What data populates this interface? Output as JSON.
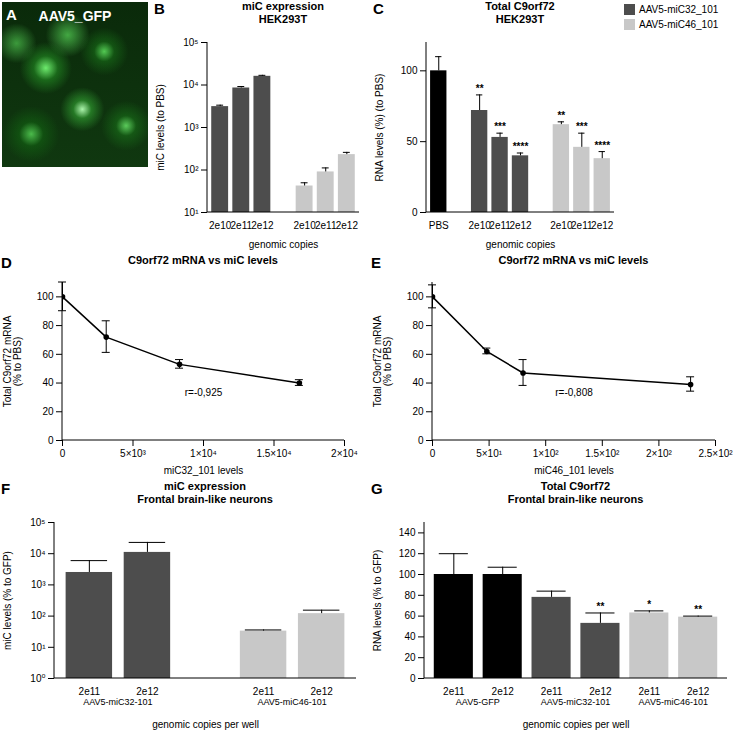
{
  "chart_data": [
    {
      "panel": "A",
      "type": "image",
      "title": "AAV5_GFP"
    },
    {
      "panel": "B",
      "type": "bar",
      "title": "miC expression\nHEK293T",
      "xlabel": "genomic copies",
      "ylabel": "miC levels (to PBS)",
      "log": "y",
      "categories": [
        "2e10",
        "2e11",
        "2e12",
        null,
        "2e10",
        "2e11",
        "2e12"
      ],
      "series": [
        {
          "color": "#4d4d4d",
          "values": [
            3100,
            8500,
            16000,
            null,
            null,
            null,
            null
          ],
          "errors": [
            250,
            700,
            900,
            null,
            null,
            null,
            null
          ]
        },
        {
          "color": "#c8c8c8",
          "values": [
            null,
            null,
            null,
            null,
            42,
            90,
            230
          ],
          "errors": [
            null,
            null,
            null,
            null,
            8,
            22,
            30
          ]
        }
      ],
      "ylim": [
        10,
        100000
      ],
      "yticks": [
        {
          "value": 10,
          "label": "10¹"
        },
        {
          "value": 100,
          "label": "10²"
        },
        {
          "value": 1000,
          "label": "10³"
        },
        {
          "value": 10000,
          "label": "10⁴"
        },
        {
          "value": 100000,
          "label": "10⁵"
        }
      ]
    },
    {
      "panel": "C",
      "type": "bar",
      "title": "Total C9orf72\nHEK293T",
      "xlabel": "genomic copies",
      "ylabel": "RNA levels (%) (to PBS)",
      "legend": "top-right",
      "categories": [
        "PBS",
        null,
        "2e10",
        "2e11",
        "2e12",
        null,
        "2e10",
        "2e11",
        "2e12"
      ],
      "series": [
        {
          "color": "#000000",
          "values": [
            100,
            null,
            null,
            null,
            null,
            null,
            null,
            null,
            null
          ],
          "errors": [
            10,
            null,
            null,
            null,
            null,
            null,
            null,
            null,
            null
          ]
        },
        {
          "name": "AAV5-miC32_101",
          "color": "#4d4d4d",
          "values": [
            null,
            null,
            72,
            53,
            40,
            null,
            null,
            null,
            null
          ],
          "errors": [
            null,
            null,
            11,
            3,
            2,
            null,
            null,
            null,
            null
          ],
          "significance": [
            null,
            null,
            "**",
            "***",
            "****",
            null,
            null,
            null,
            null
          ]
        },
        {
          "name": "AAV5-miC46_101",
          "color": "#c8c8c8",
          "values": [
            null,
            null,
            null,
            null,
            null,
            null,
            62,
            46,
            38
          ],
          "errors": [
            null,
            null,
            null,
            null,
            null,
            null,
            2,
            10,
            5
          ],
          "significance": [
            null,
            null,
            null,
            null,
            null,
            null,
            "**",
            "***",
            "****"
          ]
        }
      ],
      "ylim": [
        0,
        120
      ],
      "yticks": [
        0,
        50,
        100
      ]
    },
    {
      "panel": "D",
      "type": "line",
      "title": "C9orf72 mRNA vs miC levels",
      "xlabel": "miC32_101 levels",
      "ylabel": "Total C9orf72 mRNA\n(% to PBS)",
      "x": [
        0,
        3100,
        8300,
        16800
      ],
      "series": [
        {
          "color": "#000000",
          "marker": "circle",
          "values": [
            100,
            72,
            53,
            40
          ],
          "errors": [
            10,
            11,
            3,
            2
          ]
        }
      ],
      "annotations": [
        "r=-0,925"
      ],
      "xlim": [
        0,
        20000
      ],
      "xticks": [
        0,
        {
          "value": 5000,
          "label": "5×10³"
        },
        {
          "value": 10000,
          "label": "1×10⁴"
        },
        {
          "value": 15000,
          "label": "1.5×10⁴"
        },
        {
          "value": 20000,
          "label": "2×10⁴"
        }
      ],
      "ylim": [
        0,
        110
      ],
      "yticks": [
        0,
        20,
        40,
        60,
        80,
        100
      ]
    },
    {
      "panel": "E",
      "type": "line",
      "title": "C9orf72 mRNA vs miC levels",
      "xlabel": "miC46_101 levels",
      "ylabel": "Total C9orf72 mRNA\n(% to PBS)",
      "x": [
        0,
        48,
        80,
        228
      ],
      "series": [
        {
          "color": "#000000",
          "marker": "circle",
          "values": [
            100,
            62,
            47,
            39
          ],
          "errors": [
            8,
            2,
            9,
            5
          ]
        }
      ],
      "annotations": [
        "r=-0,808"
      ],
      "xlim": [
        0,
        250
      ],
      "xticks": [
        0,
        {
          "value": 50,
          "label": "5×10¹"
        },
        {
          "value": 100,
          "label": "1×10²"
        },
        {
          "value": 150,
          "label": "1.5×10²"
        },
        {
          "value": 200,
          "label": "2×10²"
        },
        {
          "value": 250,
          "label": "2.5×10²"
        }
      ],
      "ylim": [
        0,
        110
      ],
      "yticks": [
        0,
        20,
        40,
        60,
        80,
        100
      ]
    },
    {
      "panel": "F",
      "type": "bar",
      "title": "miC expression\nFrontal brain-like neurons",
      "xlabel": "genomic copies per well",
      "ylabel": "miC levels (% to GFP)",
      "log": "y",
      "categories": [
        "2e11",
        "2e12",
        null,
        "2e11",
        "2e12"
      ],
      "groups": [
        "AAV5-miC32-101",
        "AAV5-miC32-101",
        null,
        "AAV5-miC46-101",
        "AAV5-miC46-101"
      ],
      "series": [
        {
          "color": "#4d4d4d",
          "values": [
            2500,
            11000,
            null,
            null,
            null
          ],
          "errors": [
            3500,
            12000,
            null,
            null,
            null
          ]
        },
        {
          "color": "#c8c8c8",
          "values": [
            null,
            null,
            null,
            33,
            120
          ],
          "errors": [
            null,
            null,
            null,
            3,
            35
          ]
        }
      ],
      "ylim": [
        1,
        100000
      ],
      "yticks": [
        {
          "value": 1,
          "label": "10⁰"
        },
        {
          "value": 10,
          "label": "10¹"
        },
        {
          "value": 100,
          "label": "10²"
        },
        {
          "value": 1000,
          "label": "10³"
        },
        {
          "value": 10000,
          "label": "10⁴"
        },
        {
          "value": 100000,
          "label": "10⁵"
        }
      ]
    },
    {
      "panel": "G",
      "type": "bar",
      "title": "Total C9orf72\nFrontal brain-like neurons",
      "xlabel": "genomic copies per well",
      "ylabel": "RNA levels (% to GFP)",
      "categories": [
        "2e11",
        "2e12",
        "2e11",
        "2e12",
        "2e11",
        "2e12"
      ],
      "groups": [
        "AAV5-GFP",
        "AAV5-GFP",
        "AAV5-miC32-101",
        "AAV5-miC32-101",
        "AAV5-miC46-101",
        "AAV5-miC46-101"
      ],
      "series": [
        {
          "color": "#000000",
          "values": [
            100,
            100,
            null,
            null,
            null,
            null
          ],
          "errors": [
            20,
            7,
            null,
            null,
            null,
            null
          ]
        },
        {
          "color": "#4d4d4d",
          "values": [
            null,
            null,
            78,
            53,
            null,
            null
          ],
          "errors": [
            null,
            null,
            6,
            10,
            null,
            null
          ],
          "significance": [
            null,
            null,
            null,
            "**",
            null,
            null
          ]
        },
        {
          "color": "#c8c8c8",
          "values": [
            null,
            null,
            null,
            null,
            63,
            59
          ],
          "errors": [
            null,
            null,
            null,
            null,
            2,
            1
          ],
          "significance": [
            null,
            null,
            null,
            null,
            "*",
            "**"
          ]
        }
      ],
      "ylim": [
        0,
        150
      ],
      "yticks": [
        0,
        20,
        40,
        60,
        80,
        100,
        120,
        140
      ]
    }
  ]
}
